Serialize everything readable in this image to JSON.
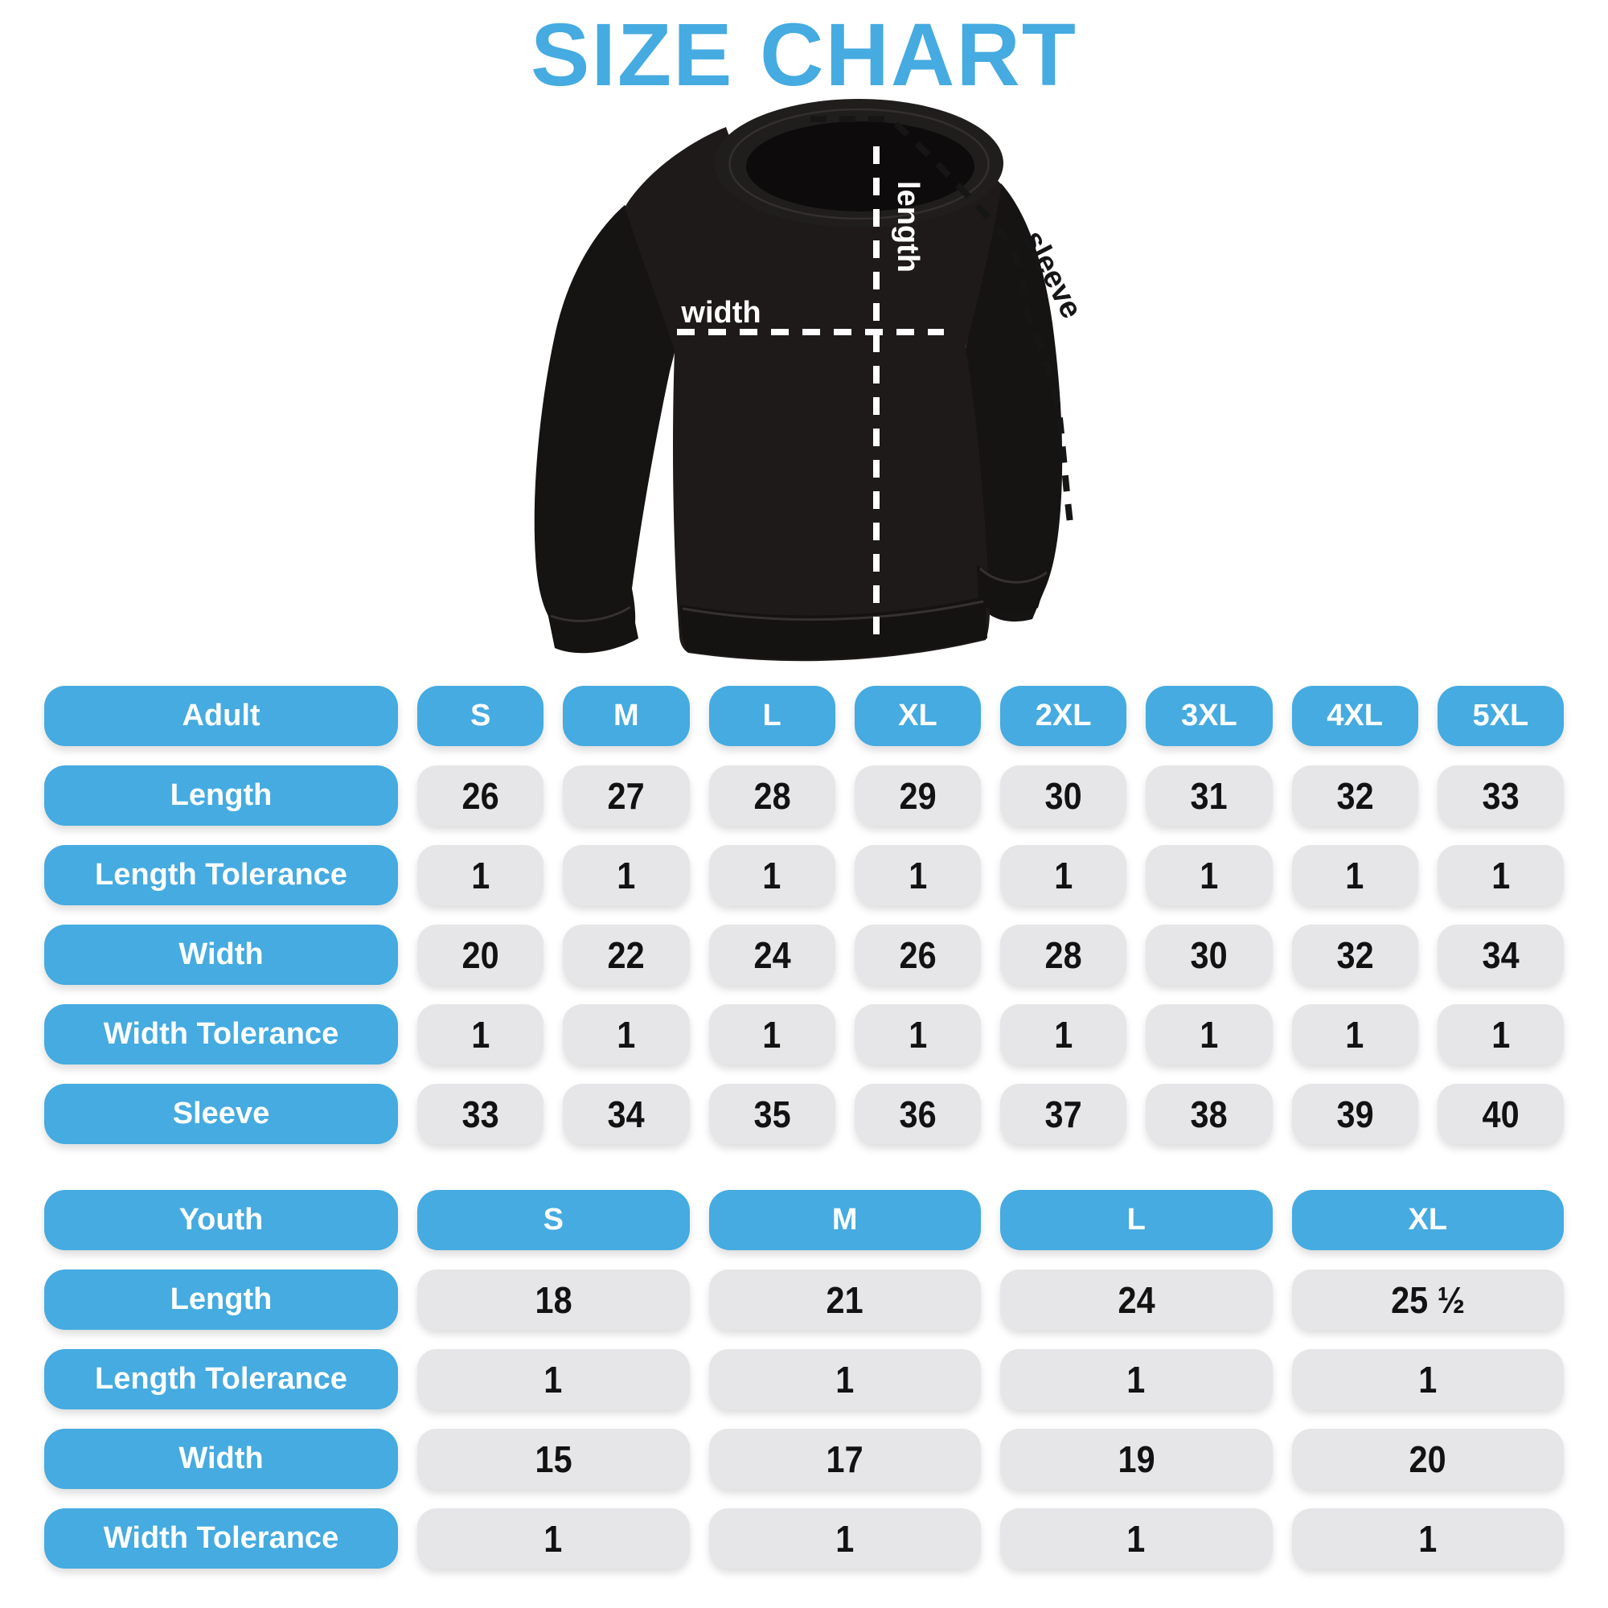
{
  "title": "SIZE CHART",
  "colors": {
    "accent_blue": "#45ABE0",
    "cell_gray": "#E6E6E8",
    "cell_text": "#121212",
    "garment_black": "#1d1a19"
  },
  "diagram": {
    "labels": {
      "width": "width",
      "length": "length",
      "sleeve": "sleeve"
    }
  },
  "adult_table": {
    "header": [
      "Adult",
      "S",
      "M",
      "L",
      "XL",
      "2XL",
      "3XL",
      "4XL",
      "5XL"
    ],
    "rows": [
      {
        "label": "Length",
        "values": [
          "26",
          "27",
          "28",
          "29",
          "30",
          "31",
          "32",
          "33"
        ]
      },
      {
        "label": "Length Tolerance",
        "values": [
          "1",
          "1",
          "1",
          "1",
          "1",
          "1",
          "1",
          "1"
        ]
      },
      {
        "label": "Width",
        "values": [
          "20",
          "22",
          "24",
          "26",
          "28",
          "30",
          "32",
          "34"
        ]
      },
      {
        "label": "Width Tolerance",
        "values": [
          "1",
          "1",
          "1",
          "1",
          "1",
          "1",
          "1",
          "1"
        ]
      },
      {
        "label": "Sleeve",
        "values": [
          "33",
          "34",
          "35",
          "36",
          "37",
          "38",
          "39",
          "40"
        ]
      }
    ]
  },
  "youth_table": {
    "header": [
      "Youth",
      "S",
      "M",
      "L",
      "XL"
    ],
    "rows": [
      {
        "label": "Length",
        "values": [
          "18",
          "21",
          "24",
          "25 ½"
        ]
      },
      {
        "label": "Length Tolerance",
        "values": [
          "1",
          "1",
          "1",
          "1"
        ]
      },
      {
        "label": "Width",
        "values": [
          "15",
          "17",
          "19",
          "20"
        ]
      },
      {
        "label": "Width Tolerance",
        "values": [
          "1",
          "1",
          "1",
          "1"
        ]
      }
    ]
  }
}
